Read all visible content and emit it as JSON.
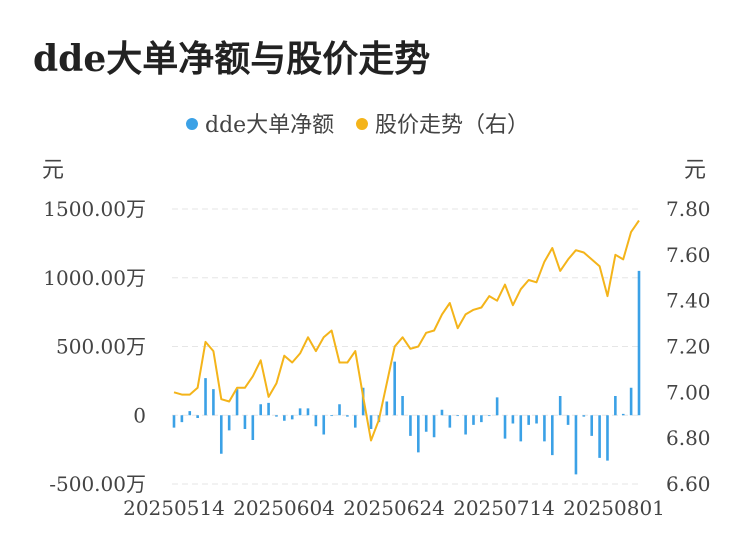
{
  "title": "dde大单净额与股价走势",
  "colors": {
    "bar": "#3ba1e6",
    "line": "#f4b41a",
    "grid": "#e6e6e6"
  },
  "chart_data": {
    "type": "bar+line",
    "legend": [
      "dde大单净额",
      "股价走势（右）"
    ],
    "legend_position": "top-center",
    "left_unit": "元",
    "right_unit": "元",
    "left_ticks": [
      "1500.00万",
      "1000.00万",
      "500.00万",
      "0",
      "-500.00万"
    ],
    "right_ticks": [
      "7.80",
      "7.60",
      "7.40",
      "7.20",
      "7.00",
      "6.80",
      "6.60"
    ],
    "x_ticks": [
      "20250514",
      "20250604",
      "20250624",
      "20250714",
      "20250801"
    ],
    "ylim_left": [
      -500,
      1500
    ],
    "ylim_right": [
      6.6,
      7.8
    ],
    "grid": true,
    "series": [
      {
        "name": "dde大单净额",
        "axis": "left",
        "unit": "万",
        "values": [
          -90,
          -50,
          30,
          -20,
          270,
          190,
          -280,
          -110,
          190,
          -100,
          -180,
          80,
          90,
          -10,
          -40,
          -30,
          50,
          50,
          -80,
          -140,
          0,
          80,
          -10,
          -90,
          200,
          -100,
          -50,
          100,
          390,
          140,
          -150,
          -270,
          -120,
          -160,
          40,
          -90,
          0,
          -140,
          -70,
          -50,
          0,
          130,
          -170,
          -60,
          -190,
          -70,
          -60,
          -190,
          -290,
          140,
          -70,
          -430,
          -10,
          -150,
          -310,
          -330,
          140,
          10,
          200,
          1050
        ]
      },
      {
        "name": "股价走势（右）",
        "axis": "right",
        "values": [
          7.0,
          6.99,
          6.99,
          7.02,
          7.22,
          7.18,
          6.97,
          6.96,
          7.02,
          7.02,
          7.07,
          7.14,
          6.98,
          7.04,
          7.16,
          7.13,
          7.17,
          7.24,
          7.18,
          7.24,
          7.27,
          7.13,
          7.13,
          7.18,
          6.98,
          6.79,
          6.88,
          7.04,
          7.2,
          7.24,
          7.19,
          7.2,
          7.26,
          7.27,
          7.34,
          7.39,
          7.28,
          7.34,
          7.36,
          7.37,
          7.42,
          7.4,
          7.47,
          7.38,
          7.45,
          7.49,
          7.48,
          7.57,
          7.63,
          7.53,
          7.58,
          7.62,
          7.61,
          7.58,
          7.55,
          7.42,
          7.6,
          7.58,
          7.7,
          7.75
        ]
      }
    ]
  }
}
